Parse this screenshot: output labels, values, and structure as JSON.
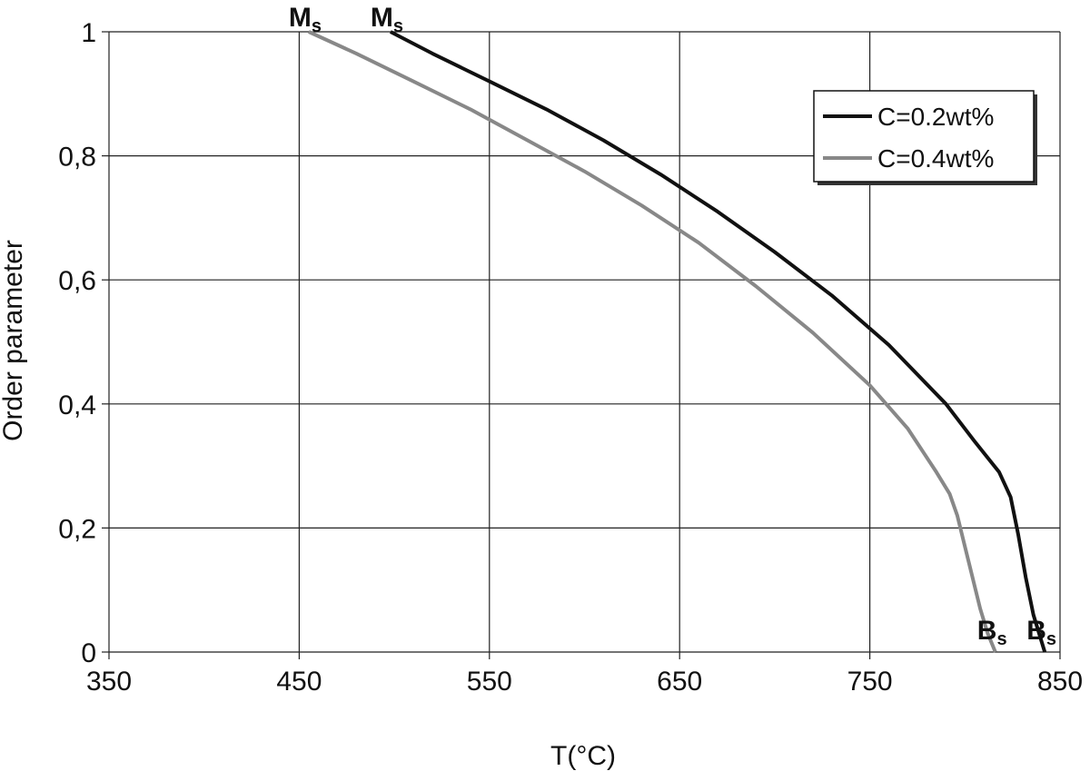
{
  "chart_data": {
    "type": "line",
    "title": "",
    "xlabel": "T(°C)",
    "ylabel": "Order parameter",
    "xlim": [
      350,
      850
    ],
    "ylim": [
      0,
      1
    ],
    "x_ticks": [
      "350",
      "450",
      "550",
      "650",
      "750",
      "850"
    ],
    "y_ticks": [
      "0",
      "0,2",
      "0,4",
      "0,6",
      "0,8",
      "1"
    ],
    "x_tick_values": [
      350,
      450,
      550,
      650,
      750,
      850
    ],
    "y_tick_values": [
      0,
      0.2,
      0.4,
      0.6,
      0.8,
      1.0
    ],
    "grid": true,
    "legend_position": "top-right",
    "series": [
      {
        "name": "C=0.2wt%",
        "color": "#111111",
        "x": [
          498,
          520,
          550,
          580,
          610,
          640,
          670,
          700,
          730,
          760,
          790,
          805,
          818,
          824,
          828,
          832,
          836,
          842
        ],
        "y": [
          1.0,
          0.965,
          0.92,
          0.875,
          0.825,
          0.77,
          0.71,
          0.645,
          0.575,
          0.495,
          0.4,
          0.34,
          0.29,
          0.25,
          0.19,
          0.12,
          0.06,
          0.0
        ]
      },
      {
        "name": "C=0.4wt%",
        "color": "#888888",
        "x": [
          455,
          480,
          510,
          540,
          570,
          600,
          630,
          660,
          690,
          720,
          750,
          770,
          785,
          792,
          796,
          800,
          804,
          808,
          812,
          816
        ],
        "y": [
          1.0,
          0.965,
          0.92,
          0.875,
          0.825,
          0.775,
          0.72,
          0.66,
          0.59,
          0.515,
          0.43,
          0.36,
          0.29,
          0.255,
          0.22,
          0.17,
          0.12,
          0.07,
          0.03,
          0.0
        ]
      }
    ],
    "annotations": [
      {
        "id": "ms-gray",
        "main": "M",
        "sub": "s",
        "x": 455,
        "y": 1.0,
        "color": "#111111"
      },
      {
        "id": "ms-black",
        "main": "M",
        "sub": "s",
        "x": 498,
        "y": 1.0,
        "color": "#111111"
      },
      {
        "id": "bs-gray",
        "main": "B",
        "sub": "s",
        "x": 816,
        "y": 0.0,
        "color": "#111111"
      },
      {
        "id": "bs-black",
        "main": "B",
        "sub": "s",
        "x": 842,
        "y": 0.0,
        "color": "#111111"
      }
    ]
  }
}
